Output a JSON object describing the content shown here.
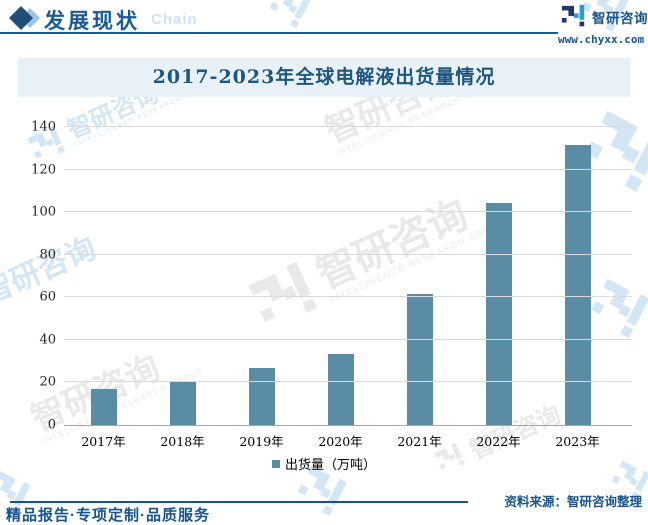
{
  "header": {
    "section_title": "发展现状",
    "section_subtitle": "Chain",
    "brand_name": "智研咨询",
    "brand_url": "www.chyxx.com"
  },
  "chart_data": {
    "type": "bar",
    "title": "2017-2023年全球电解液出货量情况",
    "categories": [
      "2017年",
      "2018年",
      "2019年",
      "2020年",
      "2021年",
      "2022年",
      "2023年"
    ],
    "series": [
      {
        "name": "出货量（万吨）",
        "values": [
          17,
          20,
          26.8,
          33.4,
          61.5,
          104.5,
          131.5
        ]
      }
    ],
    "xlabel": "",
    "ylabel": "",
    "ylim": [
      0,
      140
    ],
    "ytick_step": 20,
    "grid": true,
    "legend_position": "bottom",
    "bar_color": "#5a8ca6"
  },
  "footer": {
    "source": "资料来源：智研咨询整理",
    "tagline": "精品报告·专项定制·品质服务"
  },
  "watermark": {
    "cjk": "智研咨询",
    "caps": "INTELLIGENCE RESEARCH GROUP"
  },
  "colors": {
    "accent_blue": "#17548e",
    "header_blue": "#1a5a96",
    "title_band_bg": "#e8f1f8",
    "title_text": "#1d567f",
    "bar": "#5a8ca6",
    "gridline": "#d9d9d9",
    "watermark_blue": "#d3e6f6",
    "watermark_gray": "#e9e9e9"
  }
}
